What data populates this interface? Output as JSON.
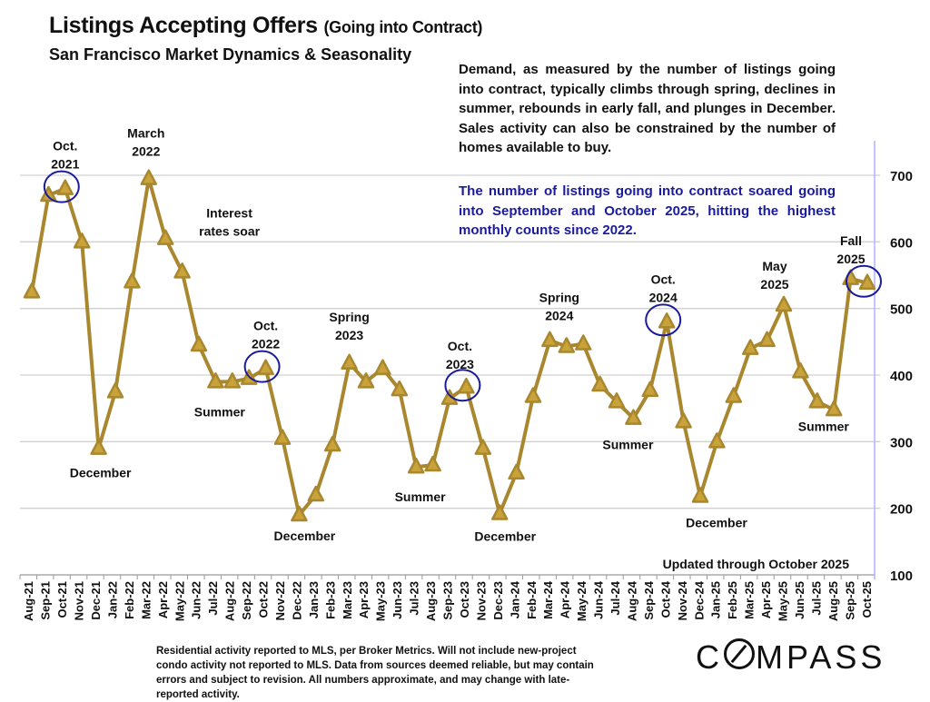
{
  "header": {
    "title_main": "Listings Accepting Offers",
    "title_paren": "(Going into Contract)",
    "subtitle": "San Francisco Market Dynamics & Seasonality"
  },
  "description": "Demand, as measured by the number of listings going into contract, typically climbs through spring, declines in summer, rebounds in early fall, and plunges in December. Sales activity can also be constrained by the number of homes available to  buy.",
  "highlight": "The number of listings going into contract soared going into September and October 2025, hitting the highest monthly counts since 2022.",
  "footnote": "Residential activity reported to MLS, per Broker Metrics. Will not include new-project condo activity not reported to MLS. Data from sources deemed reliable, but may contain errors and subject to revision. All numbers approximate, and may change with late-reported activity.",
  "logo": {
    "pre": "C",
    "post": "MPASS"
  },
  "colors": {
    "line": "#a8872e",
    "marker_fill": "#c9a23a",
    "circle": "#1a1a9c",
    "grid": "#d0d0d0",
    "axis": "#b0b0ff"
  },
  "chart_data": {
    "type": "line",
    "title": "Listings Accepting Offers (Going into Contract)",
    "subtitle": "San Francisco Market Dynamics & Seasonality",
    "xlabel": "",
    "ylabel": "",
    "ylim": [
      100,
      700
    ],
    "yticks": [
      100,
      200,
      300,
      400,
      500,
      600,
      700
    ],
    "y_axis_side": "right",
    "grid": true,
    "marker": "triangle",
    "categories": [
      "Aug-21",
      "Sep-21",
      "Oct-21",
      "Nov-21",
      "Dec-21",
      "Jan-22",
      "Feb-22",
      "Mar-22",
      "Apr-22",
      "May-22",
      "Jun-22",
      "Jul-22",
      "Aug-22",
      "Sep-22",
      "Oct-22",
      "Nov-22",
      "Dec-22",
      "Jan-23",
      "Feb-23",
      "Mar-23",
      "Apr-23",
      "May-23",
      "Jun-23",
      "Jul-23",
      "Aug-23",
      "Sep-23",
      "Oct-23",
      "Nov-23",
      "Dec-23",
      "Jan-24",
      "Feb-24",
      "Mar-24",
      "Apr-24",
      "May-24",
      "Jun-24",
      "Jul-24",
      "Aug-24",
      "Sep-24",
      "Oct-24",
      "Nov-24",
      "Dec-24",
      "Jan-25",
      "Feb-25",
      "Mar-25",
      "Apr-25",
      "May-25",
      "Jun-25",
      "Jul-25",
      "Aug-25",
      "Sep-25",
      "Oct-25"
    ],
    "series": [
      {
        "name": "Listings Accepting Offers",
        "values": [
          525,
          670,
          680,
          600,
          290,
          375,
          540,
          695,
          605,
          555,
          445,
          390,
          390,
          395,
          410,
          305,
          190,
          220,
          295,
          418,
          390,
          410,
          378,
          262,
          265,
          365,
          382,
          290,
          192,
          253,
          368,
          452,
          443,
          447,
          385,
          360,
          335,
          377,
          480,
          330,
          218,
          300,
          368,
          440,
          452,
          505,
          405,
          360,
          348,
          545,
          538
        ]
      }
    ],
    "circled_points": [
      "Oct-21",
      "Oct-22",
      "Oct-23",
      "Oct-24",
      "Oct-25"
    ],
    "annotations": [
      {
        "text": [
          "Oct.",
          "2021"
        ],
        "at": "Oct-21",
        "position": "above"
      },
      {
        "text": [
          "March",
          "2022"
        ],
        "at": "Mar-22",
        "position": "above"
      },
      {
        "text": [
          "Interest",
          "rates soar"
        ],
        "at": "May-22",
        "position": "right"
      },
      {
        "text": [
          "December"
        ],
        "at": "Dec-21",
        "position": "below"
      },
      {
        "text": [
          "Summer"
        ],
        "at": "Aug-22",
        "position": "below"
      },
      {
        "text": [
          "Oct.",
          "2022"
        ],
        "at": "Oct-22",
        "position": "above"
      },
      {
        "text": [
          "December"
        ],
        "at": "Dec-22",
        "position": "below"
      },
      {
        "text": [
          "Spring",
          "2023"
        ],
        "at": "Mar-23",
        "position": "above"
      },
      {
        "text": [
          "Summer"
        ],
        "at": "Aug-23",
        "position": "below"
      },
      {
        "text": [
          "Oct.",
          "2023"
        ],
        "at": "Oct-23",
        "position": "above"
      },
      {
        "text": [
          "December"
        ],
        "at": "Dec-23",
        "position": "below"
      },
      {
        "text": [
          "Spring",
          "2024"
        ],
        "at": "Apr-24",
        "position": "above"
      },
      {
        "text": [
          "Summer"
        ],
        "at": "Aug-24",
        "position": "below"
      },
      {
        "text": [
          "Oct.",
          "2024"
        ],
        "at": "Oct-24",
        "position": "above"
      },
      {
        "text": [
          "December"
        ],
        "at": "Dec-24",
        "position": "below"
      },
      {
        "text": [
          "May",
          "2025"
        ],
        "at": "May-25",
        "position": "above"
      },
      {
        "text": [
          "Summer"
        ],
        "at": "Jul-25",
        "position": "below"
      },
      {
        "text": [
          "Fall",
          "2025"
        ],
        "at": "Oct-25",
        "position": "above"
      }
    ],
    "updated_note": "Updated through October 2025"
  }
}
